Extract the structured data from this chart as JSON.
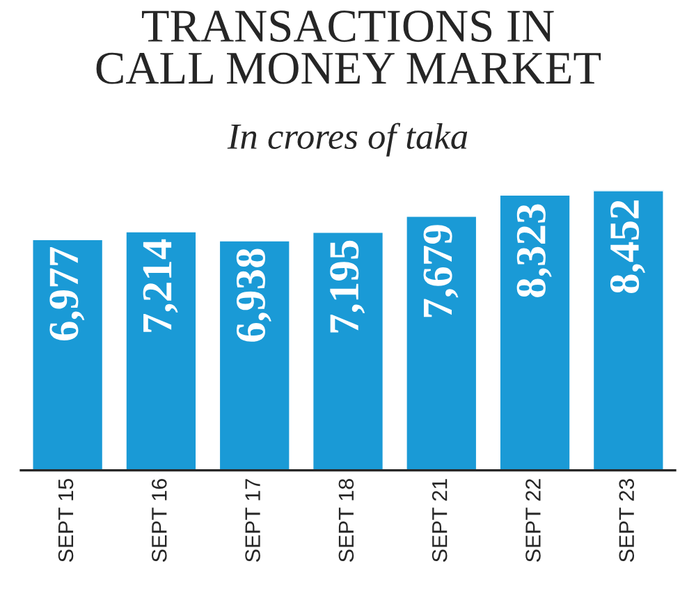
{
  "chart_data": {
    "type": "bar",
    "title": "TRANSACTIONS IN\nCALL MONEY MARKET",
    "subtitle": "In crores of taka",
    "categories": [
      "SEPT 15",
      "SEPT 16",
      "SEPT 17",
      "SEPT 18",
      "SEPT 21",
      "SEPT 22",
      "SEPT 23"
    ],
    "values": [
      6977,
      7214,
      6938,
      7195,
      7679,
      8323,
      8452
    ],
    "value_labels": [
      "6,977",
      "7,214",
      "6,938",
      "7,195",
      "7,679",
      "8,323",
      "8,452"
    ],
    "color": "#1a9ad6"
  }
}
